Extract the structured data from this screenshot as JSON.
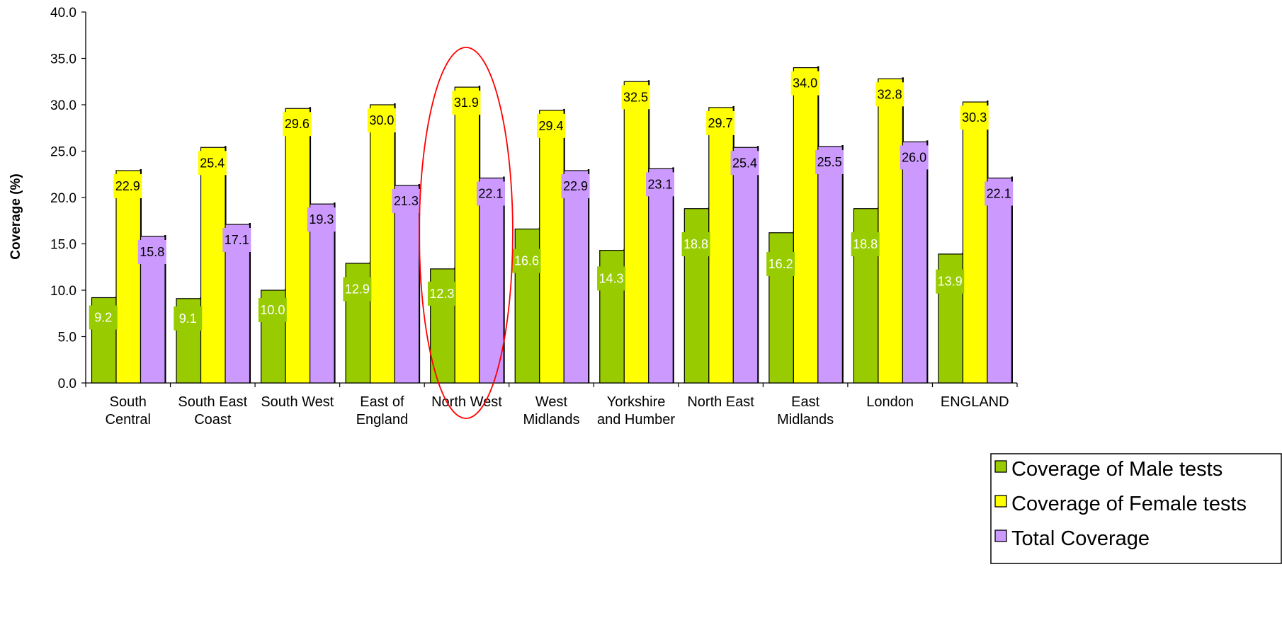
{
  "chart_data": {
    "type": "bar",
    "title": "",
    "xlabel": "",
    "ylabel": "Coverage (%)",
    "ylim": [
      0,
      40
    ],
    "yticks": [
      "0.0",
      "5.0",
      "10.0",
      "15.0",
      "20.0",
      "25.0",
      "30.0",
      "35.0",
      "40.0"
    ],
    "grid": false,
    "legend_position": "bottom-right",
    "categories": [
      [
        "South",
        "Central"
      ],
      [
        "South East",
        "Coast"
      ],
      [
        "South West"
      ],
      [
        "East of",
        "England"
      ],
      [
        "North West"
      ],
      [
        "West",
        "Midlands"
      ],
      [
        "Yorkshire",
        "and Humber"
      ],
      [
        "North East"
      ],
      [
        "East",
        "Midlands"
      ],
      [
        "London"
      ],
      [
        "ENGLAND"
      ]
    ],
    "series": [
      {
        "name": "Coverage of Male tests",
        "color": "#99cc00",
        "label_bg": "#99cc00",
        "label_color": "#ffffff",
        "values": [
          9.2,
          9.1,
          10.0,
          12.9,
          12.3,
          16.6,
          14.3,
          18.8,
          16.2,
          18.8,
          13.9
        ],
        "labels": [
          "9.2",
          "9.1",
          "10.0",
          "12.9",
          "12.3",
          "16.6",
          "14.3",
          "18.8",
          "16.2",
          "18.8",
          "13.9"
        ]
      },
      {
        "name": "Coverage of Female tests",
        "color": "#ffff00",
        "label_bg": "#ffff00",
        "label_color": "#000000",
        "values": [
          22.9,
          25.4,
          29.6,
          30.0,
          31.9,
          29.4,
          32.5,
          29.7,
          34.0,
          32.8,
          30.3
        ],
        "labels": [
          "22.9",
          "25.4",
          "29.6",
          "30.0",
          "31.9",
          "29.4",
          "32.5",
          "29.7",
          "34.0",
          "32.8",
          "30.3"
        ]
      },
      {
        "name": "Total Coverage",
        "color": "#cc99ff",
        "label_bg": "#cc99ff",
        "label_color": "#000000",
        "values": [
          15.8,
          17.1,
          19.3,
          21.3,
          22.1,
          22.9,
          23.1,
          25.4,
          25.5,
          26.0,
          22.1
        ],
        "labels": [
          "15.8",
          "17.1",
          "19.3",
          "21.3",
          "22.1",
          "22.9",
          "23.1",
          "25.4",
          "25.5",
          "26.0",
          "22.1"
        ]
      }
    ],
    "highlight": {
      "category_index": 4,
      "shape": "ellipse",
      "color": "#ff0000"
    }
  }
}
